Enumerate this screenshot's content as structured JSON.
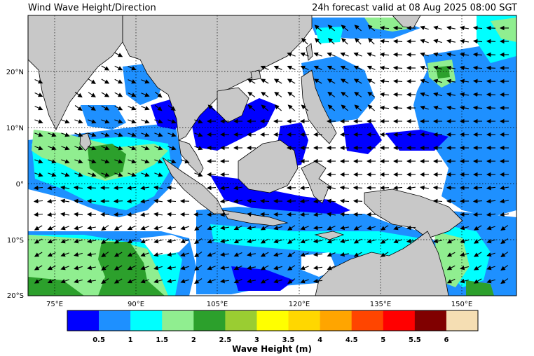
{
  "header": {
    "title": "Wind Wave Height/Direction",
    "valid_time": "24h forecast valid at 08 Aug 2025 08:00 SGT"
  },
  "map": {
    "lon_range": [
      68,
      158
    ],
    "lat_range": [
      -20,
      30
    ],
    "lon_ticks": [
      {
        "value": 75,
        "label": "75°E"
      },
      {
        "value": 90,
        "label": "90°E"
      },
      {
        "value": 105,
        "label": "105°E"
      },
      {
        "value": 120,
        "label": "120°E"
      },
      {
        "value": 135,
        "label": "135°E"
      },
      {
        "value": 150,
        "label": "150°E"
      }
    ],
    "lat_ticks": [
      {
        "value": 20,
        "label": "20°N"
      },
      {
        "value": 10,
        "label": "10°N"
      },
      {
        "value": 0,
        "label": "0°"
      },
      {
        "value": -10,
        "label": "10°S"
      },
      {
        "value": -20,
        "label": "20°S"
      }
    ],
    "colors": {
      "land": "#c8c8c8",
      "ocean_calm": "#ffffff",
      "gridline": "#000000"
    }
  },
  "colorbar": {
    "title": "Wave Height (m)",
    "bins": [
      {
        "color": "#0000ff"
      },
      {
        "color": "#1e90ff"
      },
      {
        "color": "#00ffff"
      },
      {
        "color": "#90ee90"
      },
      {
        "color": "#2ca02c"
      },
      {
        "color": "#9acd32"
      },
      {
        "color": "#ffff00"
      },
      {
        "color": "#ffd700"
      },
      {
        "color": "#ffa500"
      },
      {
        "color": "#ff4500"
      },
      {
        "color": "#ff0000"
      },
      {
        "color": "#800000"
      },
      {
        "color": "#f5deb3"
      }
    ],
    "tick_labels": [
      "0.5",
      "1",
      "1.5",
      "2",
      "2.5",
      "3",
      "3.5",
      "4",
      "4.5",
      "5",
      "5.5",
      "6"
    ]
  }
}
